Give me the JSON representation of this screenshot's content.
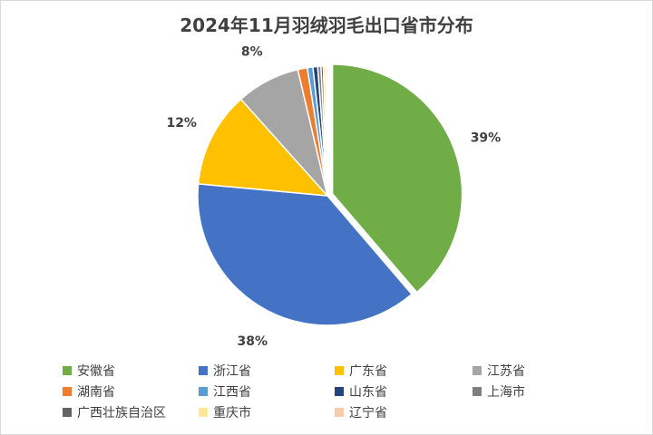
{
  "chart_data": {
    "type": "pie",
    "title": "2024年11月羽绒羽毛出口省市分布",
    "categories": [
      "安徽省",
      "浙江省",
      "广东省",
      "江苏省",
      "湖南省",
      "江西省",
      "山东省",
      "上海市",
      "广西壮族自治区",
      "重庆市",
      "辽宁省"
    ],
    "values": [
      39,
      38,
      12,
      8,
      1.2,
      0.7,
      0.6,
      0.4,
      0.3,
      0.3,
      0.2
    ],
    "data_labels": [
      "39%",
      "38%",
      "12%",
      "8%",
      "",
      "",
      "",
      "",
      "",
      "",
      ""
    ],
    "colors": [
      "#70ad47",
      "#4472c4",
      "#ffc000",
      "#a5a5a5",
      "#ed7d31",
      "#5b9bd5",
      "#264478",
      "#7f7f7f",
      "#636363",
      "#ffe699",
      "#f8cbad"
    ],
    "exploded": [
      "安徽省"
    ],
    "legend_position": "bottom"
  }
}
